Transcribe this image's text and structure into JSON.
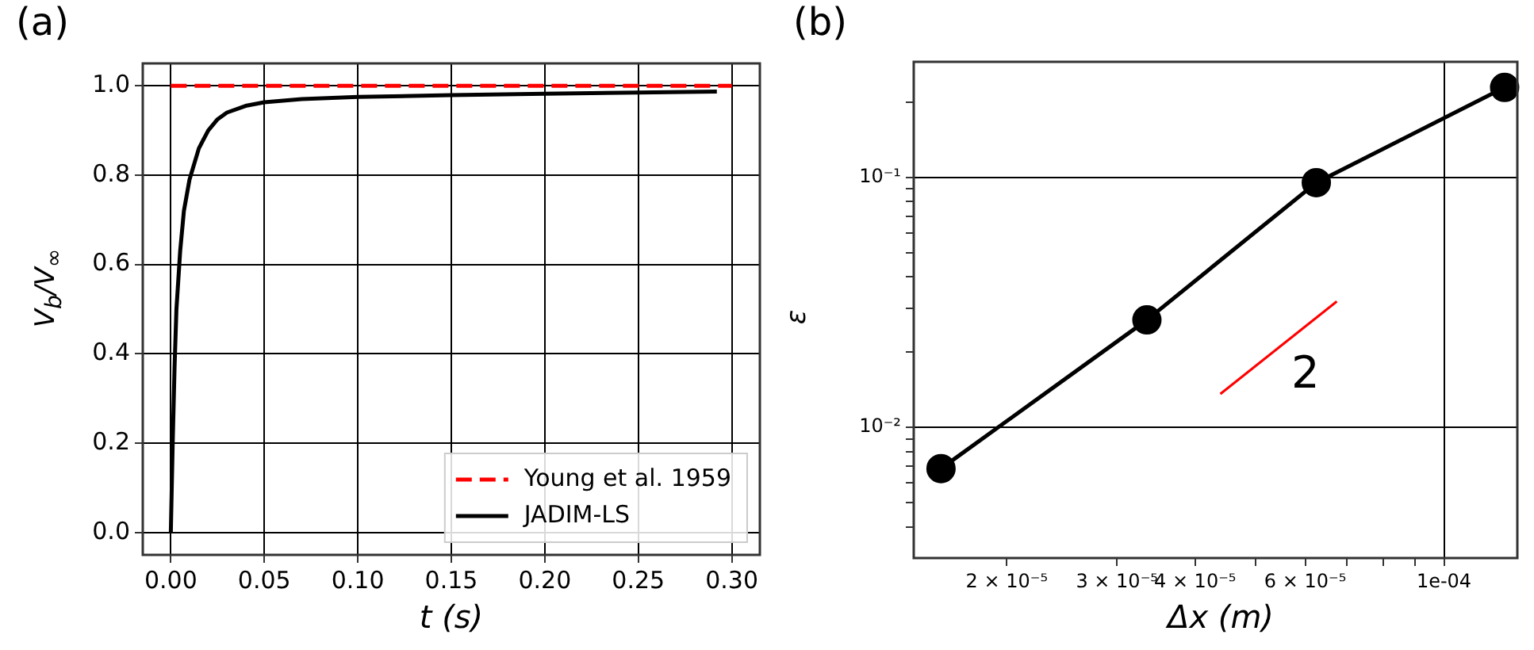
{
  "chart_data": [
    {
      "type": "line",
      "title": "(a)",
      "xlabel": "t (s)",
      "ylabel": "V$_{b}$/V$_{∞}$",
      "xlim": [
        -0.015,
        0.315
      ],
      "ylim": [
        -0.05,
        1.05
      ],
      "xticks": [
        {
          "value": 0,
          "label": "0.00"
        },
        {
          "value": 0.05,
          "label": "0.05"
        },
        {
          "value": 0.1,
          "label": "0.10"
        },
        {
          "value": 0.15,
          "label": "0.15"
        },
        {
          "value": 0.2,
          "label": "0.20"
        },
        {
          "value": 0.25,
          "label": "0.25"
        },
        {
          "value": 0.3,
          "label": "0.30"
        }
      ],
      "yticks": [
        {
          "value": 0,
          "label": "0.0"
        },
        {
          "value": 0.2,
          "label": "0.2"
        },
        {
          "value": 0.4,
          "label": "0.4"
        },
        {
          "value": 0.6,
          "label": "0.6"
        },
        {
          "value": 0.8,
          "label": "0.8"
        },
        {
          "value": 1,
          "label": "1.0"
        }
      ],
      "grid": true,
      "legend": "bottom right",
      "series": [
        {
          "name": "Young et al. 1959",
          "color": "#ff0000",
          "line_style": "dashed",
          "x": [
            0,
            0.3
          ],
          "values": [
            1,
            1
          ]
        },
        {
          "name": "JADIM-LS",
          "color": "#000000",
          "line_style": "solid",
          "x": [
            0,
            0.001,
            0.002,
            0.003,
            0.005,
            0.007,
            0.01,
            0.015,
            0.02,
            0.025,
            0.03,
            0.04,
            0.05,
            0.07,
            0.1,
            0.15,
            0.2,
            0.25,
            0.292
          ],
          "values": [
            0,
            0.2,
            0.37,
            0.5,
            0.63,
            0.72,
            0.79,
            0.86,
            0.9,
            0.925,
            0.94,
            0.955,
            0.963,
            0.97,
            0.975,
            0.979,
            0.982,
            0.985,
            0.987
          ]
        }
      ]
    },
    {
      "type": "line",
      "title": "(b)",
      "xlabel": "Δx (m)",
      "ylabel": "ε",
      "log": "xy",
      "xlim": [
        1.42e-05,
        0.000131
      ],
      "ylim": [
        0.003,
        0.29
      ],
      "xticks": [
        {
          "value": 2e-05,
          "label": "2 × 10⁻⁵"
        },
        {
          "value": 3e-05,
          "label": "3 × 10⁻⁵"
        },
        {
          "value": 4e-05,
          "label": "4 × 10⁻⁵"
        },
        {
          "value": 5e-05,
          "label": null
        },
        {
          "value": 6e-05,
          "label": "6 × 10⁻⁵"
        },
        {
          "value": 7e-05,
          "label": null
        },
        {
          "value": 8e-05,
          "label": null
        },
        {
          "value": 9e-05,
          "label": null
        },
        {
          "value": 0.0001,
          "label": "1e-04"
        }
      ],
      "yticks": [
        {
          "value": 0.004,
          "label": null
        },
        {
          "value": 0.005,
          "label": null
        },
        {
          "value": 0.006,
          "label": null
        },
        {
          "value": 0.007,
          "label": null
        },
        {
          "value": 0.008,
          "label": null
        },
        {
          "value": 0.009,
          "label": null
        },
        {
          "value": 0.01,
          "label": "10⁻²"
        },
        {
          "value": 0.02,
          "label": null
        },
        {
          "value": 0.03,
          "label": null
        },
        {
          "value": 0.04,
          "label": null
        },
        {
          "value": 0.05,
          "label": null
        },
        {
          "value": 0.06,
          "label": null
        },
        {
          "value": 0.07,
          "label": null
        },
        {
          "value": 0.08,
          "label": null
        },
        {
          "value": 0.09,
          "label": null
        },
        {
          "value": 0.1,
          "label": "10⁻¹"
        },
        {
          "value": 0.2,
          "label": null
        }
      ],
      "grid": true,
      "marker": "circle",
      "series": [
        {
          "color": "#000000",
          "x": [
            1.57e-05,
            3.35e-05,
            6.25e-05,
            0.000125
          ],
          "values": [
            0.00684,
            0.0269,
            0.0953,
            0.229
          ]
        },
        {
          "name": "2",
          "color": "#ff0000",
          "marker": "none",
          "x": [
            4.39e-05,
            6.74e-05
          ],
          "values": [
            0.0136,
            0.0319
          ]
        }
      ]
    }
  ]
}
